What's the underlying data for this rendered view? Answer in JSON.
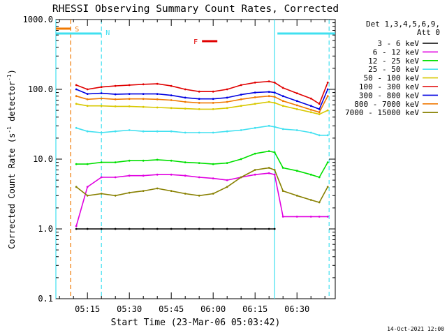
{
  "chart_data": {
    "type": "line",
    "title": "RHESSI Observing Summary Count Rates, Corrected",
    "xlabel": "Start Time (23-Mar-06 05:03:42)",
    "ylabel": "Corrected Count Rate (s⁻¹ detector⁻¹)",
    "ylabel_main": "Corrected Count Rate (s",
    "ylabel_sup1": "-1",
    "ylabel_mid": " detector",
    "ylabel_sup2": "-1",
    "ylabel_end": ")",
    "yscale": "log",
    "ylim": [
      0.1,
      1000
    ],
    "yticks": [
      {
        "value": 0.1,
        "label": "0.1"
      },
      {
        "value": 1,
        "label": "1.0"
      },
      {
        "value": 10,
        "label": "10.0"
      },
      {
        "value": 100,
        "label": "100.0"
      },
      {
        "value": 1000,
        "label": "1000.0"
      }
    ],
    "xlim": [
      "05:03:42",
      "06:43:42"
    ],
    "xticks": [
      "05:15",
      "05:30",
      "05:45",
      "06:00",
      "06:15",
      "06:30"
    ],
    "legend_placement": "right",
    "legend_header": [
      "Det 1,3,4,5,6,9,",
      "Att 0"
    ],
    "footer_date": "14-Oct-2021 12:00",
    "flags": [
      {
        "label": "S",
        "color": "#f07800",
        "start": "05:03:42",
        "end": "05:09:00"
      },
      {
        "label": "N",
        "color": "#40e0f0",
        "start": "05:03:42",
        "end": "05:20:00"
      },
      {
        "label": "N",
        "color": "#40e0f0",
        "start": "06:23:00",
        "end": "06:43:42"
      },
      {
        "label": "F",
        "color": "#e00000",
        "start": "05:56:00",
        "end": "06:01:30"
      }
    ],
    "vlines": [
      {
        "time": "05:03:42",
        "color": "#40e0f0",
        "style": "solid"
      },
      {
        "time": "05:09:00",
        "color": "#f07800",
        "style": "dashed"
      },
      {
        "time": "05:20:00",
        "color": "#40e0f0",
        "style": "dashed"
      },
      {
        "time": "06:22:00",
        "color": "#40e0f0",
        "style": "solid"
      },
      {
        "time": "06:41:30",
        "color": "#40e0f0",
        "style": "dashed"
      }
    ],
    "x": [
      "05:11",
      "05:15",
      "05:20",
      "05:25",
      "05:30",
      "05:35",
      "05:40",
      "05:45",
      "05:50",
      "05:55",
      "06:00",
      "06:05",
      "06:10",
      "06:15",
      "06:20",
      "06:22",
      "06:25",
      "06:30",
      "06:35",
      "06:38",
      "06:41"
    ],
    "series": [
      {
        "name": "3 - 6 keV",
        "color": "#000000",
        "values": [
          1.0,
          1.0,
          1.0,
          1.0,
          1.0,
          1.0,
          1.0,
          1.0,
          1.0,
          1.0,
          1.0,
          1.0,
          1.0,
          1.0,
          1.0,
          1.0,
          null,
          null,
          null,
          null,
          null
        ]
      },
      {
        "name": "6 - 12 keV",
        "color": "#e000e0",
        "values": [
          1.1,
          4.0,
          5.5,
          5.5,
          5.8,
          5.8,
          6.0,
          6.0,
          5.8,
          5.5,
          5.3,
          5.0,
          5.5,
          6.0,
          6.3,
          6.0,
          1.5,
          1.5,
          1.5,
          1.5,
          1.5
        ]
      },
      {
        "name": "12 - 25 keV",
        "color": "#00e000",
        "values": [
          8.5,
          8.5,
          9.0,
          9.0,
          9.5,
          9.5,
          9.8,
          9.5,
          9.0,
          8.8,
          8.5,
          8.8,
          10.0,
          12.0,
          13.0,
          12.5,
          7.5,
          6.8,
          6.0,
          5.5,
          9.0
        ]
      },
      {
        "name": "25 - 50 keV",
        "color": "#40e0f0",
        "values": [
          28,
          25,
          24,
          25,
          26,
          25,
          25,
          25,
          24,
          24,
          24,
          25,
          26,
          28,
          30,
          29,
          27,
          26,
          24,
          22,
          22
        ]
      },
      {
        "name": "50 - 100 keV",
        "color": "#d8c800",
        "values": [
          62,
          58,
          58,
          57,
          57,
          56,
          55,
          54,
          53,
          52,
          52,
          54,
          58,
          62,
          66,
          64,
          58,
          52,
          47,
          44,
          50
        ]
      },
      {
        "name": "100 - 300 keV",
        "color": "#e00000",
        "values": [
          115,
          100,
          108,
          112,
          115,
          118,
          120,
          112,
          100,
          93,
          93,
          100,
          115,
          125,
          130,
          125,
          105,
          88,
          74,
          62,
          125
        ]
      },
      {
        "name": "300 - 800 keV",
        "color": "#0000e0",
        "values": [
          100,
          86,
          88,
          85,
          86,
          86,
          86,
          82,
          76,
          73,
          73,
          76,
          84,
          90,
          92,
          90,
          80,
          68,
          58,
          52,
          100
        ]
      },
      {
        "name": "800 - 7000 keV",
        "color": "#f07800",
        "values": [
          80,
          72,
          74,
          72,
          73,
          73,
          72,
          70,
          66,
          64,
          64,
          66,
          72,
          77,
          80,
          78,
          68,
          59,
          51,
          47,
          80
        ]
      },
      {
        "name": "7000 - 15000 keV",
        "color": "#888000",
        "values": [
          4.0,
          3.0,
          3.2,
          3.0,
          3.3,
          3.5,
          3.8,
          3.5,
          3.2,
          3.0,
          3.2,
          4.0,
          5.5,
          7.0,
          7.5,
          7.0,
          3.5,
          3.0,
          2.6,
          2.4,
          4.0
        ]
      }
    ]
  }
}
